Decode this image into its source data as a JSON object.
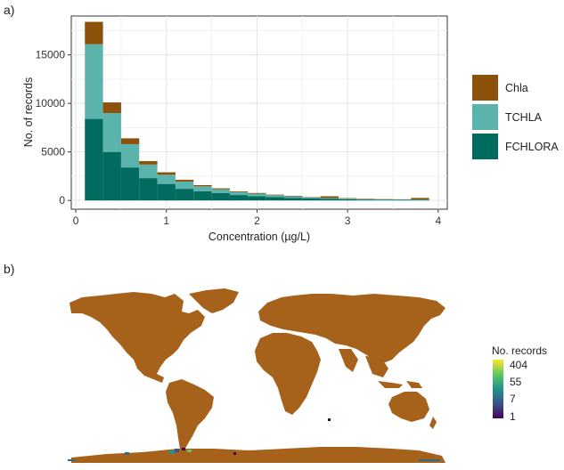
{
  "panels": {
    "a": "a)",
    "b": "b)"
  },
  "chart_data": [
    {
      "type": "bar",
      "stacked": true,
      "xlabel": "Concentration (µg/L)",
      "ylabel": "No. of records",
      "xlim": [
        -0.05,
        4.1
      ],
      "ylim": [
        -900,
        19000
      ],
      "x_ticks": [
        0,
        1,
        2,
        3,
        4
      ],
      "y_ticks": [
        0,
        5000,
        10000,
        15000
      ],
      "bin_width": 0.2,
      "bin_starts": [
        0.1,
        0.3,
        0.5,
        0.7,
        0.9,
        1.1,
        1.3,
        1.5,
        1.7,
        1.9,
        2.1,
        2.3,
        2.5,
        2.7,
        2.9,
        3.1,
        3.3,
        3.5,
        3.7
      ],
      "series": [
        {
          "name": "FCHLORA",
          "color": "#016b60",
          "values": [
            8400,
            5000,
            3400,
            2300,
            1700,
            1200,
            950,
            750,
            560,
            440,
            340,
            270,
            200,
            160,
            120,
            90,
            70,
            60,
            70
          ]
        },
        {
          "name": "TCHLA",
          "color": "#5ab4ac",
          "values": [
            7700,
            4000,
            2400,
            1400,
            950,
            750,
            500,
            400,
            300,
            260,
            200,
            160,
            110,
            90,
            80,
            60,
            50,
            40,
            40
          ]
        },
        {
          "name": "Chla",
          "color": "#8c510a",
          "values": [
            2300,
            1100,
            600,
            350,
            250,
            180,
            130,
            100,
            80,
            70,
            60,
            50,
            40,
            180,
            40,
            30,
            25,
            20,
            150
          ]
        }
      ],
      "legend": {
        "position": "right",
        "order": [
          "Chla",
          "TCHLA",
          "FCHLORA"
        ]
      },
      "grid": true
    },
    {
      "type": "heatmap",
      "description_free": true,
      "land_color": "#a6611a",
      "legend_title": "No. records",
      "legend_ticks": [
        "404",
        "55",
        "7",
        "1"
      ],
      "colormap": [
        "#440154",
        "#3b528b",
        "#21918c",
        "#5ec962",
        "#fde725"
      ]
    }
  ]
}
